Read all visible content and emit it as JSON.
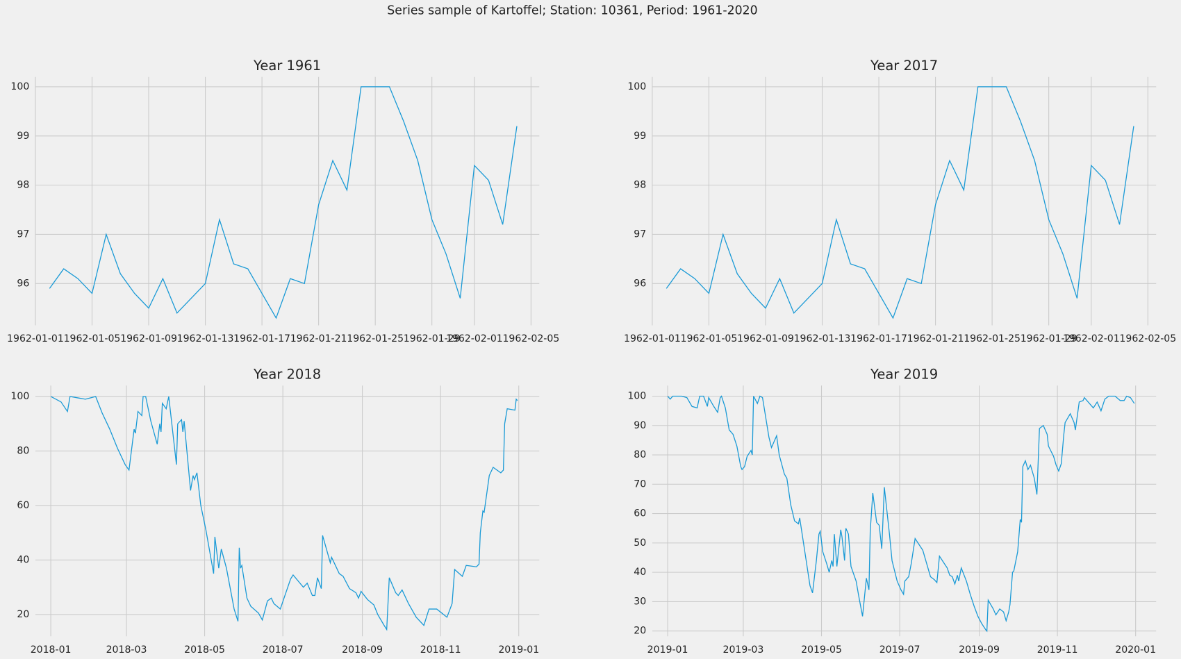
{
  "title": "Series sample of Kartoffel; Station: 10361, Period: 1961-2020",
  "chart_data": [
    {
      "type": "line",
      "title": "Year 1961",
      "color": "#1a9ad6",
      "grid": true,
      "x": [
        "1962-01-02",
        "1962-01-03",
        "1962-01-04",
        "1962-01-05",
        "1962-01-06",
        "1962-01-07",
        "1962-01-08",
        "1962-01-09",
        "1962-01-10",
        "1962-01-11",
        "1962-01-13",
        "1962-01-14",
        "1962-01-15",
        "1962-01-16",
        "1962-01-18",
        "1962-01-19",
        "1962-01-20",
        "1962-01-21",
        "1962-01-22",
        "1962-01-23",
        "1962-01-24",
        "1962-01-26",
        "1962-01-27",
        "1962-01-28",
        "1962-01-29",
        "1962-01-30",
        "1962-01-31",
        "1962-02-01",
        "1962-02-02",
        "1962-02-03",
        "1962-02-04"
      ],
      "values": [
        95.9,
        96.3,
        96.1,
        95.8,
        97.0,
        96.2,
        95.8,
        95.5,
        96.1,
        95.4,
        96.0,
        97.3,
        96.4,
        96.3,
        95.3,
        96.1,
        96.0,
        97.6,
        98.5,
        97.9,
        100,
        100,
        99.3,
        98.5,
        97.3,
        96.6,
        95.7,
        98.4,
        98.1,
        97.2,
        99.2
      ],
      "xlim": [
        "1962-01-01",
        "1962-02-05T14:00"
      ],
      "xticks": [
        "1962-01-01",
        "1962-01-05",
        "1962-01-09",
        "1962-01-13",
        "1962-01-17",
        "1962-01-21",
        "1962-01-25",
        "1962-01-29",
        "1962-02-01",
        "1962-02-05"
      ],
      "ylim": [
        95.15,
        100.2
      ],
      "yticks": [
        96,
        97,
        98,
        99,
        100
      ]
    },
    {
      "type": "line",
      "title": "Year 2017",
      "color": "#1a9ad6",
      "grid": true,
      "x": [
        "1962-01-02",
        "1962-01-03",
        "1962-01-04",
        "1962-01-05",
        "1962-01-06",
        "1962-01-07",
        "1962-01-08",
        "1962-01-09",
        "1962-01-10",
        "1962-01-11",
        "1962-01-13",
        "1962-01-14",
        "1962-01-15",
        "1962-01-16",
        "1962-01-18",
        "1962-01-19",
        "1962-01-20",
        "1962-01-21",
        "1962-01-22",
        "1962-01-23",
        "1962-01-24",
        "1962-01-26",
        "1962-01-27",
        "1962-01-28",
        "1962-01-29",
        "1962-01-30",
        "1962-01-31",
        "1962-02-01",
        "1962-02-02",
        "1962-02-03",
        "1962-02-04"
      ],
      "values": [
        95.9,
        96.3,
        96.1,
        95.8,
        97.0,
        96.2,
        95.8,
        95.5,
        96.1,
        95.4,
        96.0,
        97.3,
        96.4,
        96.3,
        95.3,
        96.1,
        96.0,
        97.6,
        98.5,
        97.9,
        100,
        100,
        99.3,
        98.5,
        97.3,
        96.6,
        95.7,
        98.4,
        98.1,
        97.2,
        99.2
      ],
      "xlim": [
        "1962-01-01",
        "1962-02-05T14:00"
      ],
      "xticks": [
        "1962-01-01",
        "1962-01-05",
        "1962-01-09",
        "1962-01-13",
        "1962-01-17",
        "1962-01-21",
        "1962-01-25",
        "1962-01-29",
        "1962-02-01",
        "1962-02-05"
      ],
      "ylim": [
        95.15,
        100.2
      ],
      "yticks": [
        96,
        97,
        98,
        99,
        100
      ]
    },
    {
      "type": "line",
      "title": "Year 2018",
      "color": "#1a9ad6",
      "grid": true,
      "x": [
        "2018-01-01",
        "2018-01-09",
        "2018-01-14",
        "2018-01-16",
        "2018-01-22",
        "2018-01-28",
        "2018-02-05",
        "2018-02-10",
        "2018-02-16",
        "2018-02-22",
        "2018-02-28",
        "2018-03-03",
        "2018-03-07",
        "2018-03-08",
        "2018-03-10",
        "2018-03-13",
        "2018-03-14",
        "2018-03-16",
        "2018-03-20",
        "2018-03-25",
        "2018-03-27",
        "2018-03-28",
        "2018-03-29",
        "2018-04-01",
        "2018-04-03",
        "2018-04-09",
        "2018-04-10",
        "2018-04-13",
        "2018-04-14",
        "2018-04-15",
        "2018-04-20",
        "2018-04-22",
        "2018-04-23",
        "2018-04-25",
        "2018-04-28",
        "2018-05-02",
        "2018-05-08",
        "2018-05-09",
        "2018-05-12",
        "2018-05-14",
        "2018-05-18",
        "2018-05-24",
        "2018-05-27",
        "2018-05-28",
        "2018-05-29",
        "2018-05-30",
        "2018-06-03",
        "2018-06-06",
        "2018-06-12",
        "2018-06-15",
        "2018-06-19",
        "2018-06-22",
        "2018-06-24",
        "2018-06-29",
        "2018-07-07",
        "2018-07-09",
        "2018-07-17",
        "2018-07-20",
        "2018-07-24",
        "2018-07-26",
        "2018-07-28",
        "2018-07-31",
        "2018-08-01",
        "2018-08-07",
        "2018-08-08",
        "2018-08-14",
        "2018-08-17",
        "2018-08-22",
        "2018-08-27",
        "2018-08-29",
        "2018-08-31",
        "2018-09-05",
        "2018-09-10",
        "2018-09-13",
        "2018-09-18",
        "2018-09-20",
        "2018-09-22",
        "2018-09-27",
        "2018-09-29",
        "2018-10-02",
        "2018-10-07",
        "2018-10-13",
        "2018-10-19",
        "2018-10-23",
        "2018-10-29",
        "2018-11-06",
        "2018-11-10",
        "2018-11-12",
        "2018-11-18",
        "2018-11-21",
        "2018-11-29",
        "2018-12-01",
        "2018-12-02",
        "2018-12-04",
        "2018-12-05",
        "2018-12-09",
        "2018-12-12",
        "2018-12-18",
        "2018-12-20",
        "2018-12-21",
        "2018-12-23",
        "2018-12-29",
        "2018-12-30",
        "2018-12-31"
      ],
      "values": [
        100,
        98,
        94.5,
        100,
        99.5,
        99,
        100,
        94,
        88,
        81,
        75,
        73,
        88,
        86.5,
        94.5,
        93,
        100,
        100,
        91,
        82.5,
        90,
        87,
        97.5,
        95.5,
        100,
        75,
        90,
        91.5,
        87,
        91,
        65.5,
        71,
        69.5,
        72,
        60,
        51,
        35,
        48.5,
        37,
        44,
        37,
        22,
        17.5,
        44.5,
        37,
        38,
        26,
        23,
        20.5,
        18,
        25,
        26,
        24,
        22,
        33,
        34.5,
        30,
        31.5,
        27,
        27,
        33.5,
        29.5,
        49,
        39,
        41,
        35,
        34,
        29.5,
        28,
        26,
        28.5,
        25.5,
        23.5,
        20,
        16,
        14.5,
        33.5,
        28,
        27,
        29,
        24,
        19,
        16,
        22,
        22,
        19,
        24,
        36.5,
        34,
        38,
        37.5,
        38.5,
        50,
        58,
        57.5,
        71,
        74,
        72,
        73,
        90,
        95.5,
        95,
        99,
        98.5
      ],
      "xlim": [
        "2017-12-20",
        "2019-01-17"
      ],
      "xticks": [
        "2018-01",
        "2018-03",
        "2018-05",
        "2018-07",
        "2018-09",
        "2018-11",
        "2019-01"
      ],
      "ylim": [
        12,
        104
      ],
      "yticks": [
        20,
        40,
        60,
        80,
        100
      ]
    },
    {
      "type": "line",
      "title": "Year 2019",
      "color": "#1a9ad6",
      "grid": true,
      "x": [
        "2019-01-01",
        "2019-01-03",
        "2019-01-05",
        "2019-01-12",
        "2019-01-16",
        "2019-01-20",
        "2019-01-24",
        "2019-01-26",
        "2019-01-29",
        "2019-02-01",
        "2019-02-02",
        "2019-02-06",
        "2019-02-09",
        "2019-02-11",
        "2019-02-12",
        "2019-02-15",
        "2019-02-18",
        "2019-02-21",
        "2019-02-24",
        "2019-02-27",
        "2019-02-28",
        "2019-03-02",
        "2019-03-04",
        "2019-03-07",
        "2019-03-08",
        "2019-03-09",
        "2019-03-12",
        "2019-03-14",
        "2019-03-16",
        "2019-03-21",
        "2019-03-23",
        "2019-03-27",
        "2019-03-29",
        "2019-04-02",
        "2019-04-04",
        "2019-04-07",
        "2019-04-10",
        "2019-04-13",
        "2019-04-14",
        "2019-04-18",
        "2019-04-22",
        "2019-04-24",
        "2019-04-27",
        "2019-04-29",
        "2019-04-30",
        "2019-05-02",
        "2019-05-05",
        "2019-05-07",
        "2019-05-09",
        "2019-05-10",
        "2019-05-11",
        "2019-05-13",
        "2019-05-16",
        "2019-05-17",
        "2019-05-19",
        "2019-05-20",
        "2019-05-22",
        "2019-05-24",
        "2019-05-28",
        "2019-05-30",
        "2019-06-02",
        "2019-06-05",
        "2019-06-07",
        "2019-06-08",
        "2019-06-10",
        "2019-06-13",
        "2019-06-15",
        "2019-06-17",
        "2019-06-19",
        "2019-06-23",
        "2019-06-25",
        "2019-06-29",
        "2019-07-02",
        "2019-07-04",
        "2019-07-05",
        "2019-07-08",
        "2019-07-10",
        "2019-07-13",
        "2019-07-16",
        "2019-07-19",
        "2019-07-22",
        "2019-07-25",
        "2019-07-28",
        "2019-07-30",
        "2019-08-01",
        "2019-08-04",
        "2019-08-07",
        "2019-08-09",
        "2019-08-11",
        "2019-08-13",
        "2019-08-15",
        "2019-08-16",
        "2019-08-18",
        "2019-08-22",
        "2019-08-25",
        "2019-08-28",
        "2019-08-31",
        "2019-09-03",
        "2019-09-06",
        "2019-09-07",
        "2019-09-08",
        "2019-09-12",
        "2019-09-14",
        "2019-09-17",
        "2019-09-20",
        "2019-09-22",
        "2019-09-24",
        "2019-09-25",
        "2019-09-27",
        "2019-09-28",
        "2019-10-01",
        "2019-10-03",
        "2019-10-04",
        "2019-10-05",
        "2019-10-07",
        "2019-10-09",
        "2019-10-11",
        "2019-10-14",
        "2019-10-16",
        "2019-10-18",
        "2019-10-21",
        "2019-10-24",
        "2019-10-25",
        "2019-10-29",
        "2019-10-31",
        "2019-11-02",
        "2019-11-04",
        "2019-11-06",
        "2019-11-07",
        "2019-11-11",
        "2019-11-14",
        "2019-11-15",
        "2019-11-18",
        "2019-11-21",
        "2019-11-22",
        "2019-11-26",
        "2019-11-29",
        "2019-12-02",
        "2019-12-05",
        "2019-12-08",
        "2019-12-11",
        "2019-12-16",
        "2019-12-20",
        "2019-12-23",
        "2019-12-25",
        "2019-12-28",
        "2019-12-31"
      ],
      "values": [
        100,
        99,
        100,
        100,
        99.5,
        96.5,
        96,
        100,
        100,
        96.5,
        99.5,
        96.5,
        94.5,
        99.5,
        100,
        96,
        88.5,
        87,
        83,
        76,
        75,
        76,
        79.5,
        81.5,
        80,
        100,
        97.5,
        100,
        99.5,
        86,
        82.5,
        86.5,
        80,
        73.5,
        72,
        63,
        57.5,
        56.5,
        58.5,
        47,
        35.5,
        33,
        44,
        53,
        54,
        47,
        43,
        40,
        44,
        42,
        53,
        42,
        54.5,
        52,
        44,
        55,
        53,
        42,
        37,
        32,
        25,
        38,
        34,
        54,
        67,
        57,
        56,
        48,
        69,
        53,
        44,
        37,
        34,
        32.5,
        37,
        38.5,
        43,
        51.5,
        49.5,
        47.5,
        43,
        38.5,
        37.5,
        36.5,
        45.5,
        43.5,
        41.5,
        39,
        38.5,
        36,
        39,
        37,
        41.5,
        37,
        32.5,
        28.5,
        25,
        22.5,
        20.5,
        20,
        30.5,
        27.5,
        25.5,
        27.5,
        26.5,
        23.5,
        26.5,
        29,
        40,
        40.5,
        47,
        58,
        57,
        76,
        78,
        75,
        76.5,
        72,
        66.5,
        89,
        90,
        87,
        83,
        79.5,
        76.5,
        74.5,
        77,
        87,
        91,
        94,
        91,
        88.5,
        98,
        98.5,
        99.5,
        97.5,
        96,
        98,
        95,
        99,
        100,
        100,
        98.5,
        98.5,
        100,
        99.5,
        97.5
      ],
      "xlim": [
        "2018-12-20",
        "2020-01-17"
      ],
      "xticks": [
        "2019-01",
        "2019-03",
        "2019-05",
        "2019-07",
        "2019-09",
        "2019-11",
        "2020-01"
      ],
      "ylim": [
        18.2,
        103.6
      ],
      "yticks": [
        20,
        30,
        40,
        50,
        60,
        70,
        80,
        90,
        100
      ]
    }
  ]
}
